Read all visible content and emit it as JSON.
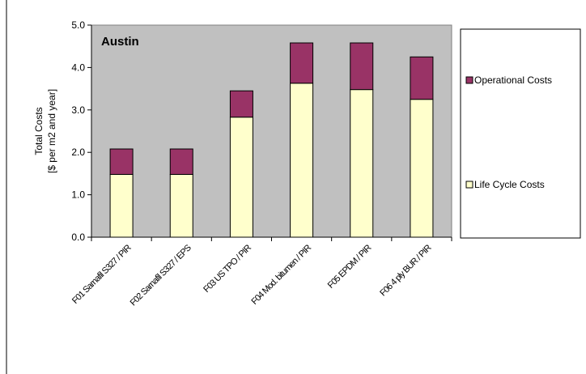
{
  "chart_data": {
    "type": "bar",
    "stacked": true,
    "title": "Austin",
    "ylabel_lines": [
      "Total Costs",
      "[$ per m2 and year]"
    ],
    "xlabel": "",
    "ylim": [
      0,
      5
    ],
    "yticks": [
      "0.0",
      "1.0",
      "2.0",
      "3.0",
      "4.0",
      "5.0"
    ],
    "grid": false,
    "plot_background": "#c0c0c0",
    "legend_position": "right",
    "categories": [
      "F01 Sarnafil S327 / PIR",
      "F02 Sarnafil S327 / EPS",
      "F03 US TPO / PIR",
      "F04 Mod. bitumen / PIR",
      "F05 EPDM / PIR",
      "F06 4 ply BUR / PIR"
    ],
    "series": [
      {
        "name": "Life Cycle Costs",
        "color": "#ffffcc",
        "values": [
          1.48,
          1.48,
          2.83,
          3.63,
          3.48,
          3.25
        ]
      },
      {
        "name": "Operational Costs",
        "color": "#993366",
        "values": [
          0.6,
          0.6,
          0.62,
          0.95,
          1.1,
          1.0
        ]
      }
    ],
    "legend_order": [
      "Operational Costs",
      "Life Cycle Costs"
    ]
  }
}
